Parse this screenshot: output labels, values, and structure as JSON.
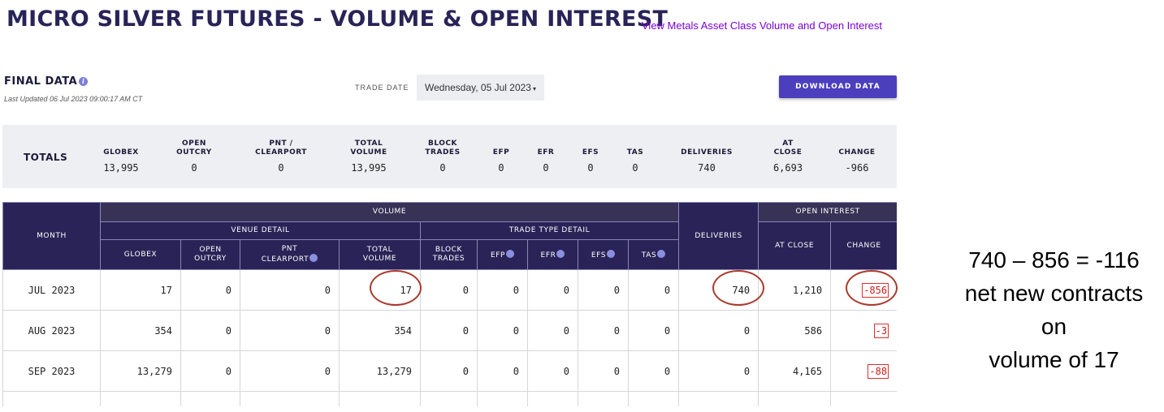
{
  "header": {
    "title": "MICRO SILVER FUTURES - VOLUME & OPEN INTEREST",
    "metals_link": "View Metals Asset Class Volume and Open Interest"
  },
  "controls": {
    "final_data": "FINAL DATA",
    "info_icon": "i",
    "last_updated": "Last Updated 06 Jul 2023 09:00:17 AM CT",
    "trade_date_label": "TRADE DATE",
    "trade_date_value": "Wednesday, 05 Jul 2023",
    "download_label": "DOWNLOAD DATA"
  },
  "totals": {
    "label": "TOTALS",
    "columns": [
      {
        "h1": "GLOBEX",
        "h2": "",
        "value": "13,995"
      },
      {
        "h1": "OPEN",
        "h2": "OUTCRY",
        "value": "0"
      },
      {
        "h1": "PNT /",
        "h2": "CLEARPORT",
        "value": "0"
      },
      {
        "h1": "TOTAL",
        "h2": "VOLUME",
        "value": "13,995"
      },
      {
        "h1": "BLOCK",
        "h2": "TRADES",
        "value": "0"
      },
      {
        "h1": "EFP",
        "h2": "",
        "value": "0"
      },
      {
        "h1": "EFR",
        "h2": "",
        "value": "0"
      },
      {
        "h1": "EFS",
        "h2": "",
        "value": "0"
      },
      {
        "h1": "TAS",
        "h2": "",
        "value": "0"
      },
      {
        "h1": "DELIVERIES",
        "h2": "",
        "value": "740"
      },
      {
        "h1": "AT",
        "h2": "CLOSE",
        "value": "6,693"
      },
      {
        "h1": "CHANGE",
        "h2": "",
        "value": "-966"
      }
    ]
  },
  "table": {
    "headers": {
      "month": "MONTH",
      "volume": "VOLUME",
      "venue_detail": "VENUE DETAIL",
      "trade_type_detail": "TRADE TYPE DETAIL",
      "deliveries": "DELIVERIES",
      "open_interest": "OPEN INTEREST",
      "globex": "GLOBEX",
      "open_outcry_1": "OPEN",
      "open_outcry_2": "OUTCRY",
      "pnt_1": "PNT",
      "pnt_2": "CLEARPORT",
      "total_volume_1": "TOTAL",
      "total_volume_2": "VOLUME",
      "block_1": "BLOCK",
      "block_2": "TRADES",
      "efp": "EFP",
      "efr": "EFR",
      "efs": "EFS",
      "tas": "TAS",
      "at_close": "AT CLOSE",
      "change": "CHANGE"
    },
    "rows": [
      {
        "month": "JUL 2023",
        "globex": "17",
        "open_outcry": "0",
        "pnt": "0",
        "total_volume": "17",
        "block": "0",
        "efp": "0",
        "efr": "0",
        "efs": "0",
        "tas": "0",
        "deliveries": "740",
        "at_close": "1,210",
        "change": "-856"
      },
      {
        "month": "AUG 2023",
        "globex": "354",
        "open_outcry": "0",
        "pnt": "0",
        "total_volume": "354",
        "block": "0",
        "efp": "0",
        "efr": "0",
        "efs": "0",
        "tas": "0",
        "deliveries": "0",
        "at_close": "586",
        "change": "-3"
      },
      {
        "month": "SEP 2023",
        "globex": "13,279",
        "open_outcry": "0",
        "pnt": "0",
        "total_volume": "13,279",
        "block": "0",
        "efp": "0",
        "efr": "0",
        "efs": "0",
        "tas": "0",
        "deliveries": "0",
        "at_close": "4,165",
        "change": "-88"
      }
    ]
  },
  "annotation": {
    "line1": "740 – 856 = -116",
    "line2": "net new contracts",
    "line3": "on",
    "line4": "volume of 17"
  },
  "colors": {
    "header_navy": "#2a2357",
    "button_purple": "#4c3fbe",
    "link_purple": "#7a00d9",
    "negative_red": "#d21b1b",
    "circle_red": "#a93a2e"
  }
}
